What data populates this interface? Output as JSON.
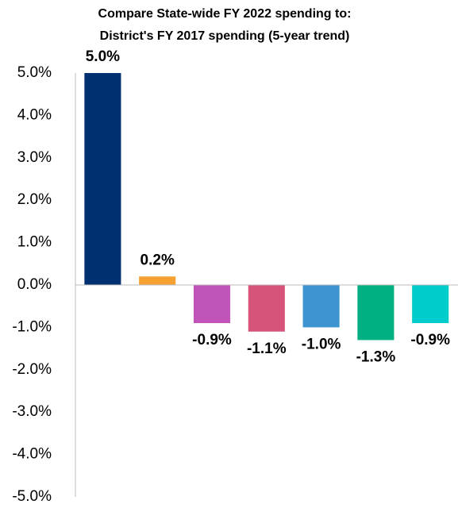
{
  "chart_data": {
    "type": "bar",
    "title": "Compare State-wide FY 2022 spending to:",
    "subtitle": "District's FY 2017 spending (5-year trend)",
    "categories": [
      null,
      null,
      null,
      null,
      null,
      null,
      null
    ],
    "values": [
      5.0,
      0.2,
      -0.9,
      -1.1,
      -1.0,
      -1.3,
      -0.9
    ],
    "value_labels": [
      "5.0%",
      "0.2%",
      "-0.9%",
      "-1.1%",
      "-1.0%",
      "-1.3%",
      "-0.9%"
    ],
    "colors": [
      "#003070",
      "#f5a030",
      "#c054b8",
      "#d6547a",
      "#3d94d0",
      "#00b083",
      "#00cccc"
    ],
    "ylim": [
      -5,
      5
    ],
    "yticks": [
      {
        "value": 5,
        "label": "5.0%"
      },
      {
        "value": 4,
        "label": "4.0%"
      },
      {
        "value": 3,
        "label": "3.0%"
      },
      {
        "value": 2,
        "label": "2.0%"
      },
      {
        "value": 1,
        "label": "1.0%"
      },
      {
        "value": 0,
        "label": "0.0%"
      },
      {
        "value": -1,
        "label": "-1.0%"
      },
      {
        "value": -2,
        "label": "-2.0%"
      },
      {
        "value": -3,
        "label": "-3.0%"
      },
      {
        "value": -4,
        "label": "-4.0%"
      },
      {
        "value": -5,
        "label": "-5.0%"
      }
    ],
    "grid": false
  }
}
